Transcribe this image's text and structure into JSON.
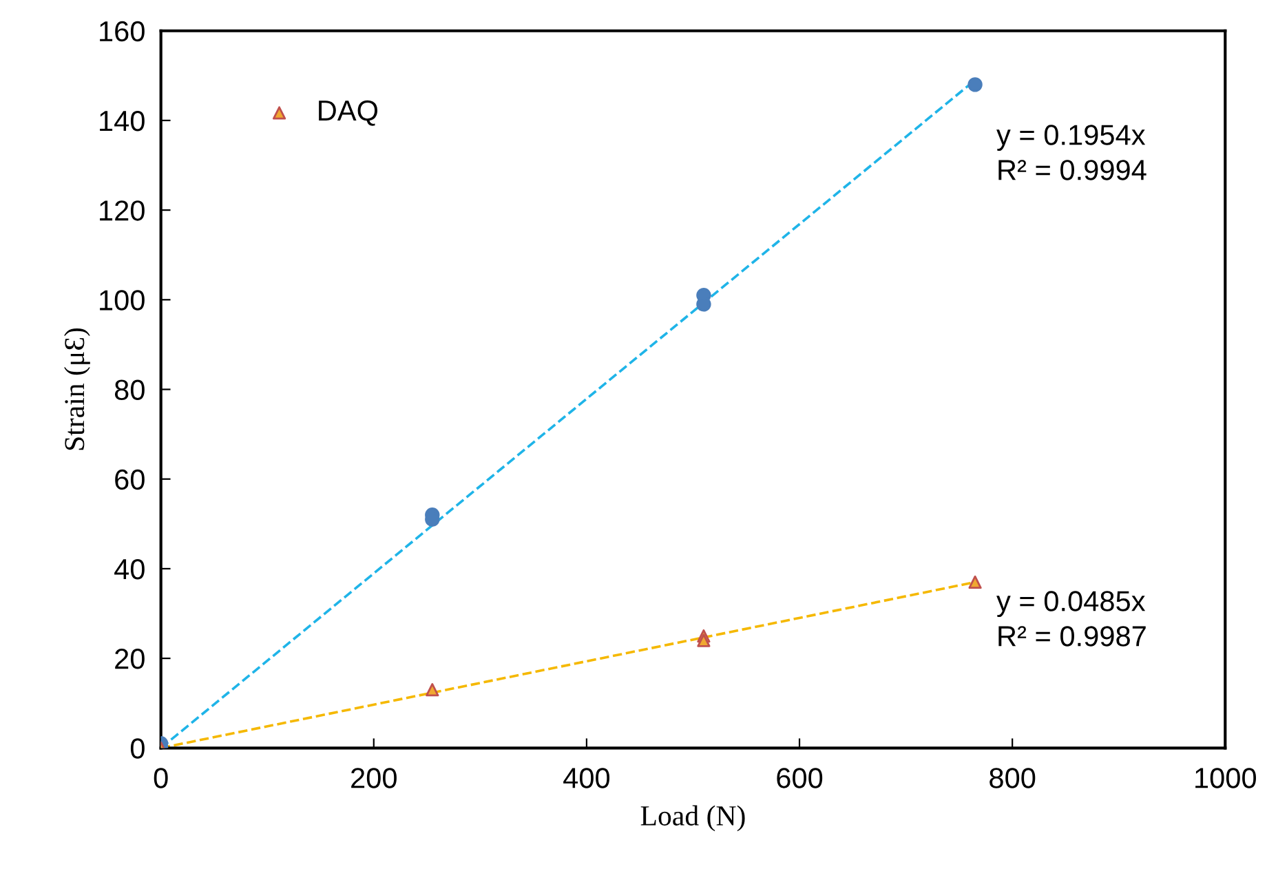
{
  "chart_data": {
    "type": "scatter",
    "xlabel": "Load (N)",
    "ylabel": "Strain (μƐ)",
    "xlim": [
      0,
      1000
    ],
    "xticks": [
      0,
      200,
      400,
      600,
      800,
      1000
    ],
    "ylim": [
      0,
      160
    ],
    "yticks": [
      0,
      20,
      40,
      60,
      80,
      100,
      120,
      140,
      160
    ],
    "grid": false,
    "legend": "top left",
    "series": [
      {
        "color": "#4a7ebb",
        "marker": "circle",
        "x": [
          0,
          0,
          255,
          255,
          510,
          510,
          765
        ],
        "values": [
          1,
          0,
          52,
          51,
          101,
          99,
          148
        ]
      },
      {
        "name": "DAQ",
        "color": "#f0a830",
        "marker": "triangle",
        "x": [
          0,
          255,
          510,
          510,
          765
        ],
        "values": [
          0,
          13,
          25,
          24,
          37
        ]
      },
      {
        "type": "line",
        "color": "#1fb4e8",
        "line_style": "dashed",
        "marker": "none",
        "x": [
          0,
          765
        ],
        "values": [
          0,
          149
        ]
      },
      {
        "type": "line",
        "color": "#f5b800",
        "line_style": "dashed",
        "marker": "none",
        "x": [
          0,
          765
        ],
        "values": [
          0,
          37
        ]
      }
    ],
    "annotations": [
      "y = 0.1954x\nR² = 0.9994",
      "y = 0.0485x\nR² = 0.9987"
    ]
  }
}
